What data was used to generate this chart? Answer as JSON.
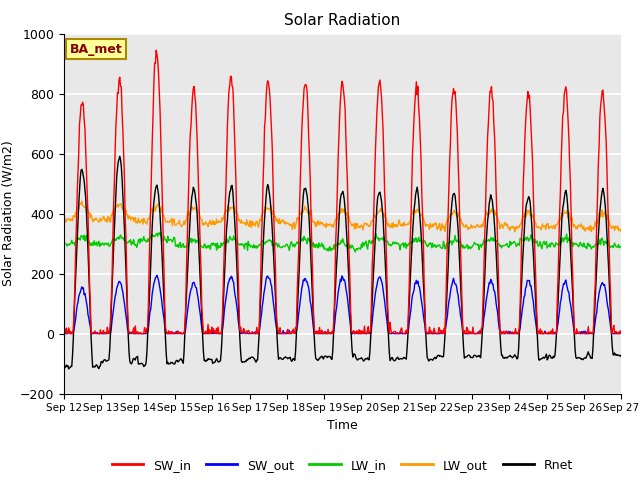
{
  "title": "Solar Radiation",
  "xlabel": "Time",
  "ylabel": "Solar Radiation (W/m2)",
  "ylim": [
    -200,
    1000
  ],
  "yticks": [
    -200,
    0,
    200,
    400,
    600,
    800,
    1000
  ],
  "date_labels": [
    "Sep 12",
    "Sep 13",
    "Sep 14",
    "Sep 15",
    "Sep 16",
    "Sep 17",
    "Sep 18",
    "Sep 19",
    "Sep 20",
    "Sep 21",
    "Sep 22",
    "Sep 23",
    "Sep 24",
    "Sep 25",
    "Sep 26",
    "Sep 27"
  ],
  "colors": {
    "SW_in": "#ff0000",
    "SW_out": "#0000ff",
    "LW_in": "#00cc00",
    "LW_out": "#ff9900",
    "Rnet": "#000000"
  },
  "legend_label": "BA_met",
  "legend_box_color": "#ffff99",
  "legend_box_edge_color": "#aa8800",
  "n_days": 15,
  "hours_per_day": 24,
  "dt_hours": 0.5,
  "SW_in_peak": [
    780,
    860,
    940,
    820,
    860,
    840,
    840,
    830,
    840,
    825,
    820,
    820,
    805,
    820,
    800
  ],
  "SW_out_peak": [
    150,
    170,
    190,
    170,
    190,
    190,
    185,
    190,
    185,
    175,
    175,
    175,
    175,
    170,
    165
  ],
  "LW_in_base": [
    300,
    300,
    310,
    290,
    295,
    290,
    295,
    285,
    300,
    295,
    290,
    295,
    300,
    295,
    290
  ],
  "LW_out_base": [
    380,
    380,
    375,
    365,
    370,
    370,
    365,
    360,
    360,
    360,
    355,
    360,
    355,
    355,
    350
  ],
  "Rnet_peak": [
    550,
    600,
    500,
    490,
    490,
    490,
    490,
    480,
    475,
    485,
    480,
    465,
    465,
    475,
    480
  ],
  "Rnet_night_min": [
    -110,
    -90,
    -100,
    -90,
    -90,
    -85,
    -85,
    -80,
    -85,
    -80,
    -80,
    -75,
    -80,
    -80,
    -75
  ],
  "background_color": "#e8e8e8",
  "grid_color": "#ffffff",
  "line_width": 1.0,
  "figsize": [
    6.4,
    4.8
  ],
  "dpi": 100
}
